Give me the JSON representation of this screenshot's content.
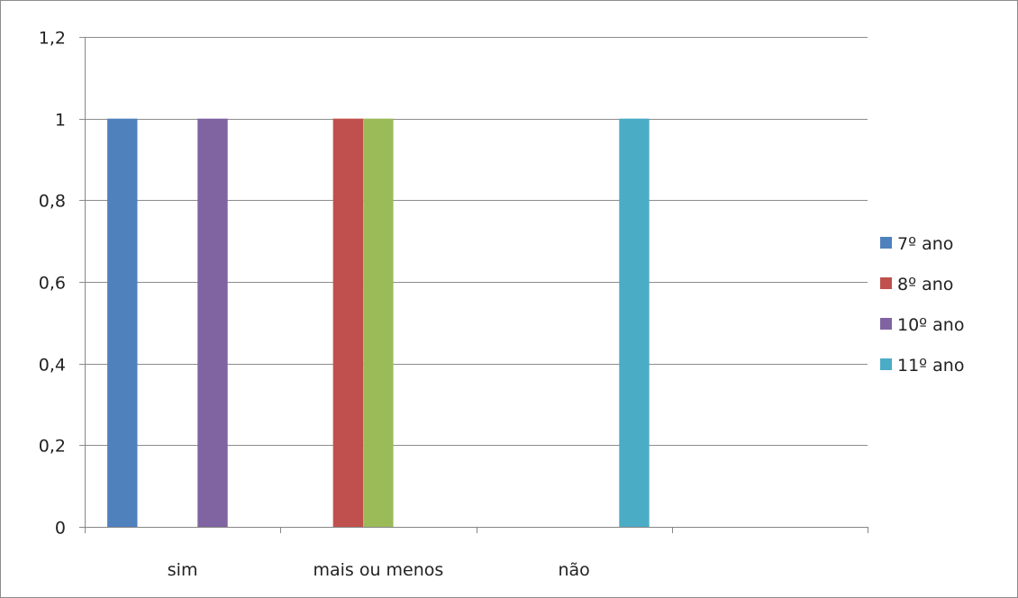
{
  "chart_data": {
    "type": "bar",
    "title": "",
    "xlabel": "",
    "ylabel": "",
    "categories": [
      "sim",
      "mais ou menos",
      "não",
      ""
    ],
    "ylim": [
      0,
      1.2
    ],
    "yticks": [
      0,
      0.2,
      0.4,
      0.6,
      0.8,
      1,
      1.2
    ],
    "ytick_labels": [
      "0",
      "0,2",
      "0,4",
      "0,6",
      "0,8",
      "1",
      "1,2"
    ],
    "grid": true,
    "legend_position": "right",
    "series": [
      {
        "name": "7º ano",
        "color": "#4f81bd",
        "values": [
          1,
          0,
          0,
          0
        ]
      },
      {
        "name": "8º ano",
        "color": "#c0504d",
        "values": [
          0,
          1,
          0,
          0
        ]
      },
      {
        "name": "",
        "color": "#9bbb59",
        "values": [
          0,
          1,
          0,
          0
        ]
      },
      {
        "name": "10º ano",
        "color": "#8064a2",
        "values": [
          1,
          0,
          0,
          0
        ]
      },
      {
        "name": "11º ano",
        "color": "#4bacc6",
        "values": [
          0,
          0,
          1,
          0
        ]
      }
    ],
    "legend": [
      {
        "label": "7º ano",
        "color": "#4f81bd"
      },
      {
        "label": "8º ano",
        "color": "#c0504d"
      },
      {
        "label": "10º ano",
        "color": "#8064a2"
      },
      {
        "label": "11º ano",
        "color": "#4bacc6"
      }
    ]
  }
}
